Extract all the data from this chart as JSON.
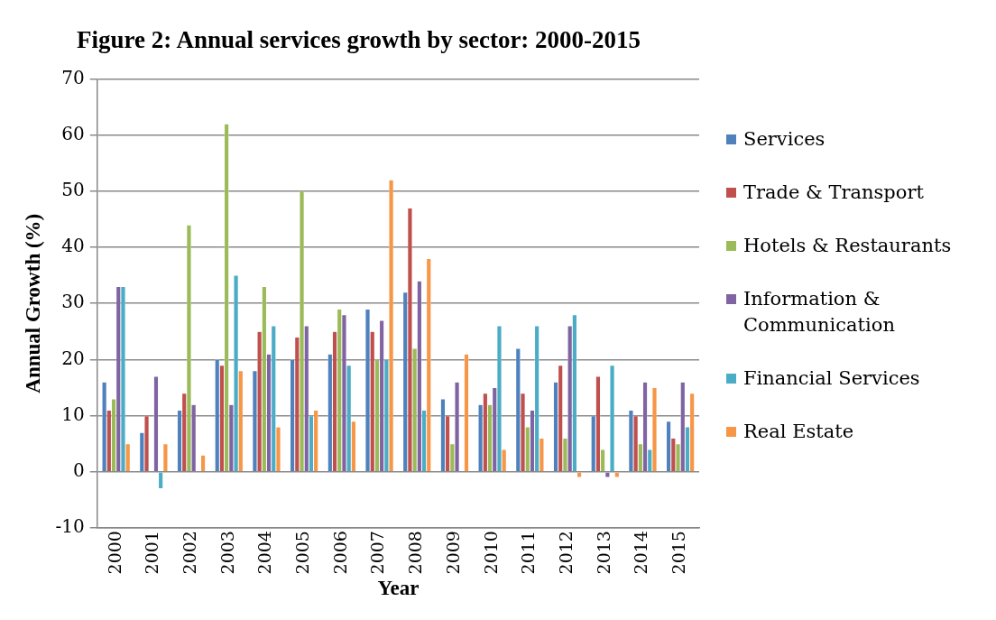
{
  "chart_data": {
    "type": "bar",
    "title": "Figure 2: Annual services growth by sector: 2000-2015",
    "xlabel": "Year",
    "ylabel": "Annual Growth (%)",
    "categories": [
      "2000",
      "2001",
      "2002",
      "2003",
      "2004",
      "2005",
      "2006",
      "2007",
      "2008",
      "2009",
      "2010",
      "2011",
      "2012",
      "2013",
      "2014",
      "2015"
    ],
    "series": [
      {
        "name": "Services",
        "color": "#4f81bd",
        "values": [
          16,
          7,
          11,
          20,
          18,
          20,
          21,
          29,
          32,
          13,
          12,
          22,
          16,
          10,
          11,
          9
        ]
      },
      {
        "name": "Trade & Transport",
        "color": "#c0504d",
        "values": [
          11,
          10,
          14,
          19,
          25,
          24,
          25,
          25,
          47,
          10,
          14,
          14,
          19,
          17,
          10,
          6
        ]
      },
      {
        "name": "Hotels & Restaurants",
        "color": "#9bbb59",
        "values": [
          13,
          0,
          44,
          62,
          33,
          50,
          29,
          20,
          22,
          5,
          12,
          8,
          6,
          4,
          5,
          5
        ]
      },
      {
        "name": "Information & Communication",
        "color": "#8064a2",
        "values": [
          33,
          17,
          12,
          12,
          21,
          26,
          28,
          27,
          34,
          16,
          15,
          11,
          26,
          -1,
          16,
          16
        ]
      },
      {
        "name": "Financial Services",
        "color": "#4bacc6",
        "values": [
          33,
          -3,
          0,
          35,
          26,
          10,
          19,
          20,
          11,
          0,
          26,
          26,
          28,
          19,
          4,
          8
        ]
      },
      {
        "name": "Real Estate",
        "color": "#f79646",
        "values": [
          5,
          5,
          3,
          18,
          8,
          11,
          9,
          52,
          38,
          21,
          4,
          6,
          -1,
          -1,
          15,
          14
        ]
      }
    ],
    "ylim": [
      -10,
      70
    ],
    "yticks": [
      -10,
      0,
      10,
      20,
      30,
      40,
      50,
      60,
      70
    ],
    "grid": "y",
    "legend": "right"
  }
}
